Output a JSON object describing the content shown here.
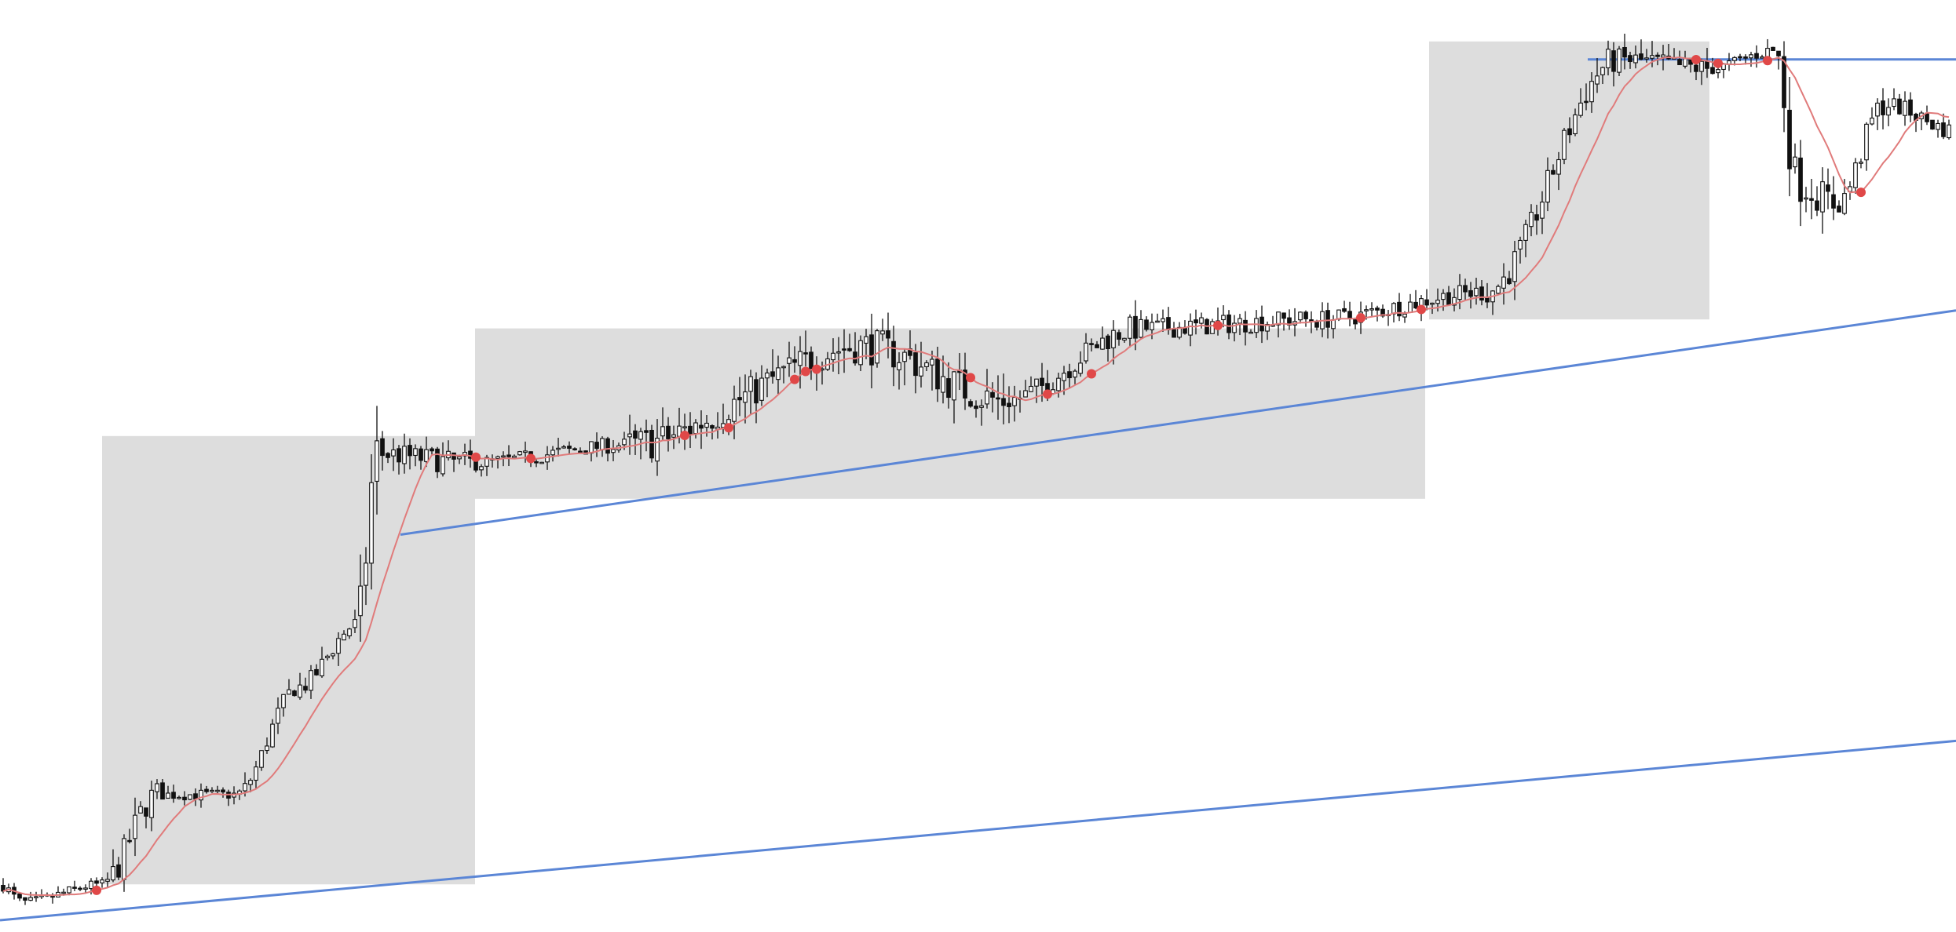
{
  "chart_data": {
    "type": "candlestick",
    "title": "",
    "xlabel": "",
    "ylabel": "",
    "axes_visible": false,
    "grid": false,
    "colors": {
      "background": "#ffffff",
      "candle": "#111111",
      "moving_average": "#e07b7b",
      "signal_dot": "#e04848",
      "zone_fill": "#dddddd",
      "trendline": "#5b86d6"
    },
    "price_range": [
      0,
      100
    ],
    "segments": [
      {
        "start": 0,
        "end": 28,
        "from": 4,
        "to": 2,
        "vol": 0.8
      },
      {
        "start": 28,
        "end": 130,
        "from": 2,
        "to": 4,
        "vol": 0.7
      },
      {
        "start": 130,
        "end": 200,
        "from": 4,
        "to": 14,
        "vol": 2.0
      },
      {
        "start": 200,
        "end": 300,
        "from": 14,
        "to": 14,
        "vol": 0.8
      },
      {
        "start": 300,
        "end": 380,
        "from": 14,
        "to": 26,
        "vol": 1.2
      },
      {
        "start": 380,
        "end": 455,
        "from": 26,
        "to": 33,
        "vol": 1.3
      },
      {
        "start": 455,
        "end": 480,
        "from": 33,
        "to": 52,
        "vol": 4.0
      },
      {
        "start": 480,
        "end": 600,
        "from": 52,
        "to": 51,
        "vol": 1.6
      },
      {
        "start": 600,
        "end": 800,
        "from": 51,
        "to": 53,
        "vol": 1.1
      },
      {
        "start": 800,
        "end": 1100,
        "from": 53,
        "to": 64,
        "vol": 2.4
      },
      {
        "start": 1100,
        "end": 1280,
        "from": 64,
        "to": 58,
        "vol": 2.6
      },
      {
        "start": 1280,
        "end": 1450,
        "from": 58,
        "to": 66,
        "vol": 1.8
      },
      {
        "start": 1450,
        "end": 1680,
        "from": 66,
        "to": 67,
        "vol": 1.4
      },
      {
        "start": 1680,
        "end": 1890,
        "from": 67,
        "to": 70,
        "vol": 1.3
      },
      {
        "start": 1890,
        "end": 2060,
        "from": 70,
        "to": 96,
        "vol": 2.0
      },
      {
        "start": 2060,
        "end": 2180,
        "from": 96,
        "to": 95,
        "vol": 1.5
      },
      {
        "start": 2180,
        "end": 2260,
        "from": 95,
        "to": 97,
        "vol": 1.0
      },
      {
        "start": 2260,
        "end": 2290,
        "from": 97,
        "to": 82,
        "vol": 3.5
      },
      {
        "start": 2290,
        "end": 2340,
        "from": 82,
        "to": 80,
        "vol": 2.5
      },
      {
        "start": 2340,
        "end": 2400,
        "from": 80,
        "to": 91,
        "vol": 1.8
      },
      {
        "start": 2400,
        "end": 2491,
        "from": 91,
        "to": 88,
        "vol": 1.2
      }
    ],
    "zones": [
      {
        "x0": 130,
        "x1": 605,
        "y0": 4,
        "y1": 54
      },
      {
        "x0": 605,
        "x1": 1815,
        "y0": 47,
        "y1": 66
      },
      {
        "x0": 1820,
        "x1": 2177,
        "y0": 67,
        "y1": 98
      }
    ],
    "trendlines": [
      {
        "x0": 0,
        "y0": 0,
        "x1": 2491,
        "y1": 20
      },
      {
        "x0": 510,
        "y0": 43,
        "x1": 2491,
        "y1": 68
      },
      {
        "x0": 2022,
        "y0": 96,
        "x1": 2491,
        "y1": 96
      }
    ],
    "signal_dots": [
      122,
      603,
      676,
      873,
      930,
      1012,
      1028,
      1042,
      1235,
      1332,
      1390,
      1553,
      1733,
      1812,
      2162,
      2185,
      2250,
      2370
    ]
  }
}
